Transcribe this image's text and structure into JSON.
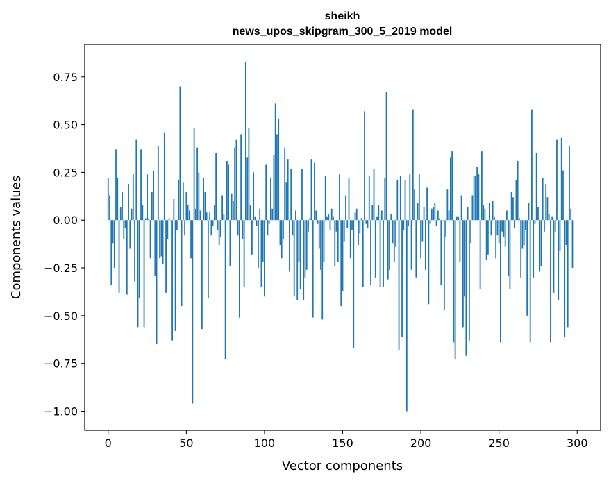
{
  "chart_data": {
    "type": "bar",
    "title": "sheikh",
    "subtitle": "news_upos_skipgram_300_5_2019 model",
    "xlabel": "Vector components",
    "ylabel": "Components values",
    "xlim": [
      -15,
      315
    ],
    "ylim": [
      -1.1,
      0.92
    ],
    "xticks": [
      0,
      50,
      100,
      150,
      200,
      250,
      300
    ],
    "yticks": [
      -1.0,
      -0.75,
      -0.5,
      -0.25,
      0.0,
      0.25,
      0.5,
      0.75
    ],
    "ytick_labels": [
      "−1.00",
      "−0.75",
      "−0.50",
      "−0.25",
      "0.00",
      "0.25",
      "0.50",
      "0.75"
    ],
    "bar_color": "#1f77b4",
    "grid": false,
    "values": [
      0.22,
      0.13,
      -0.34,
      -0.12,
      -0.25,
      0.37,
      0.22,
      -0.38,
      0.07,
      0.15,
      -0.1,
      -0.04,
      -0.39,
      0.19,
      -0.15,
      0.06,
      0.24,
      -0.32,
      0.42,
      -0.56,
      -0.41,
      0.37,
      0.08,
      -0.56,
      0.01,
      0.24,
      0.01,
      -0.2,
      0.15,
      0.26,
      -0.29,
      -0.65,
      0.39,
      -0.2,
      -0.19,
      -0.23,
      0.46,
      -0.38,
      -0.1,
      0.01,
      0.0,
      -0.63,
      0.11,
      -0.58,
      -0.05,
      0.21,
      0.7,
      -0.45,
      0.2,
      -0.08,
      0.15,
      0.08,
      0.05,
      -0.2,
      -0.96,
      0.48,
      0.06,
      0.38,
      0.25,
      0.05,
      -0.57,
      0.22,
      0.15,
      0.04,
      -0.41,
      0.04,
      -0.08,
      -0.03,
      0.08,
      0.35,
      -0.05,
      -0.13,
      -0.09,
      0.13,
      0.03,
      -0.73,
      0.31,
      0.29,
      -0.24,
      0.14,
      0.1,
      0.38,
      0.42,
      -0.08,
      -0.51,
      0.45,
      -0.1,
      -0.35,
      0.83,
      0.33,
      0.48,
      0.08,
      -0.18,
      0.25,
      0.02,
      -0.03,
      -0.25,
      0.06,
      -0.35,
      -0.22,
      -0.4,
      0.29,
      -0.08,
      -0.02,
      0.22,
      0.06,
      0.34,
      0.61,
      0.45,
      0.53,
      -0.13,
      -0.2,
      -0.1,
      0.38,
      0.2,
      0.32,
      -0.27,
      0.27,
      -0.08,
      -0.4,
      0.05,
      -0.42,
      -0.22,
      -0.36,
      0.27,
      -0.42,
      -0.3,
      -0.26,
      -0.06,
      0.01,
      0.32,
      -0.51,
      0.3,
      0.05,
      -0.02,
      -0.15,
      -0.26,
      -0.52,
      -0.22,
      0.23,
      0.02,
      0.03,
      -0.05,
      0.06,
      0.02,
      -0.24,
      -0.06,
      -0.22,
      0.24,
      -0.45,
      -0.37,
      -0.11,
      0.13,
      -0.04,
      0.22,
      -0.2,
      -0.05,
      -0.67,
      0.04,
      0.06,
      -0.13,
      -0.07,
      0.01,
      -0.35,
      0.57,
      -0.02,
      -0.04,
      0.23,
      -0.34,
      0.08,
      0.27,
      -0.3,
      0.02,
      0.08,
      -0.35,
      0.05,
      -0.35,
      0.22,
      0.67,
      -0.31,
      -0.26,
      0.03,
      -0.12,
      -0.22,
      -0.14,
      0.21,
      -0.68,
      0.23,
      -0.61,
      -0.05,
      0.21,
      -1.0,
      -0.03,
      0.24,
      -0.26,
      0.58,
      0.16,
      -0.3,
      0.09,
      0.24,
      -0.2,
      -0.11,
      0.07,
      -0.26,
      0.17,
      -0.44,
      -0.02,
      0.06,
      0.07,
      0.09,
      -0.03,
      0.05,
      0.01,
      -0.34,
      0.0,
      -0.47,
      -0.09,
      0.16,
      0.05,
      0.33,
      0.36,
      -0.64,
      -0.73,
      0.02,
      0.02,
      -0.22,
      0.13,
      -0.56,
      -0.4,
      -0.71,
      0.07,
      -0.63,
      -0.12,
      0.13,
      0.23,
      0.23,
      0.28,
      0.24,
      -0.36,
      0.36,
      0.08,
      0.06,
      -0.21,
      -0.18,
      0.09,
      -0.08,
      0.1,
      0.02,
      -0.2,
      -0.08,
      -0.12,
      -0.64,
      -0.06,
      -0.09,
      -0.14,
      0.05,
      -0.29,
      -0.36,
      0.15,
      0.12,
      -0.04,
      0.21,
      0.31,
      0.01,
      -0.3,
      -0.15,
      -0.13,
      -0.05,
      -0.5,
      0.09,
      -0.64,
      0.58,
      -0.3,
      -0.02,
      0.35,
      0.07,
      -0.27,
      -0.24,
      0.22,
      -0.06,
      0.19,
      0.12,
      0.03,
      -0.64,
      0.02,
      -0.38,
      -0.06,
      0.42,
      -0.42,
      -0.16,
      0.43,
      0.26,
      -0.61,
      -0.13,
      -0.56,
      0.39,
      0.06,
      -0.25
    ]
  }
}
